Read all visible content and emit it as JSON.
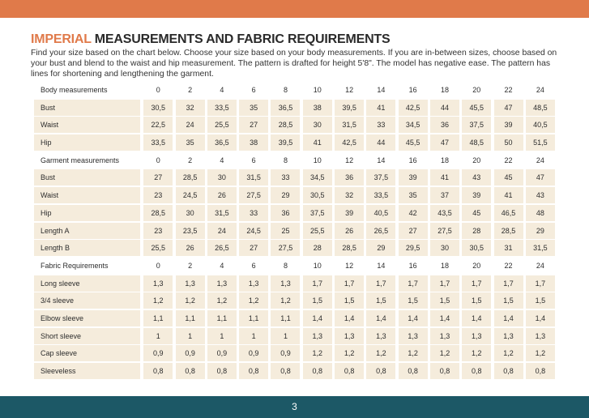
{
  "title": {
    "accent": "IMPERIAL",
    "rest": " MEASUREMENTS AND FABRIC REQUIREMENTS"
  },
  "description": "Find your size based on the chart below. Choose your size based on your body measurements. If you are in-between sizes, choose based on your bust and blend to the waist and hip measurement. The pattern is drafted for height 5'8\". The model has negative ease. The pattern has lines for shortening and lengthening the garment.",
  "sizes": [
    "0",
    "2",
    "4",
    "6",
    "8",
    "10",
    "12",
    "14",
    "16",
    "18",
    "20",
    "22",
    "24"
  ],
  "sections": [
    {
      "header": "Body measurements",
      "rows": [
        {
          "label": "Bust",
          "values": [
            "30,5",
            "32",
            "33,5",
            "35",
            "36,5",
            "38",
            "39,5",
            "41",
            "42,5",
            "44",
            "45,5",
            "47",
            "48,5"
          ]
        },
        {
          "label": "Waist",
          "values": [
            "22,5",
            "24",
            "25,5",
            "27",
            "28,5",
            "30",
            "31,5",
            "33",
            "34,5",
            "36",
            "37,5",
            "39",
            "40,5"
          ]
        },
        {
          "label": "Hip",
          "values": [
            "33,5",
            "35",
            "36,5",
            "38",
            "39,5",
            "41",
            "42,5",
            "44",
            "45,5",
            "47",
            "48,5",
            "50",
            "51,5"
          ]
        }
      ]
    },
    {
      "header": "Garment measurements",
      "rows": [
        {
          "label": "Bust",
          "values": [
            "27",
            "28,5",
            "30",
            "31,5",
            "33",
            "34,5",
            "36",
            "37,5",
            "39",
            "41",
            "43",
            "45",
            "47"
          ]
        },
        {
          "label": "Waist",
          "values": [
            "23",
            "24,5",
            "26",
            "27,5",
            "29",
            "30,5",
            "32",
            "33,5",
            "35",
            "37",
            "39",
            "41",
            "43"
          ]
        },
        {
          "label": "Hip",
          "values": [
            "28,5",
            "30",
            "31,5",
            "33",
            "36",
            "37,5",
            "39",
            "40,5",
            "42",
            "43,5",
            "45",
            "46,5",
            "48"
          ]
        },
        {
          "label": "Length A",
          "values": [
            "23",
            "23,5",
            "24",
            "24,5",
            "25",
            "25,5",
            "26",
            "26,5",
            "27",
            "27,5",
            "28",
            "28,5",
            "29"
          ]
        },
        {
          "label": "Length B",
          "values": [
            "25,5",
            "26",
            "26,5",
            "27",
            "27,5",
            "28",
            "28,5",
            "29",
            "29,5",
            "30",
            "30,5",
            "31",
            "31,5"
          ]
        }
      ]
    },
    {
      "header": "Fabric Requirements",
      "rows": [
        {
          "label": "Long sleeve",
          "values": [
            "1,3",
            "1,3",
            "1,3",
            "1,3",
            "1,3",
            "1,7",
            "1,7",
            "1,7",
            "1,7",
            "1,7",
            "1,7",
            "1,7",
            "1,7"
          ]
        },
        {
          "label": "3/4 sleeve",
          "values": [
            "1,2",
            "1,2",
            "1,2",
            "1,2",
            "1,2",
            "1,5",
            "1,5",
            "1,5",
            "1,5",
            "1,5",
            "1,5",
            "1,5",
            "1,5"
          ]
        },
        {
          "label": "Elbow sleeve",
          "values": [
            "1,1",
            "1,1",
            "1,1",
            "1,1",
            "1,1",
            "1,4",
            "1,4",
            "1,4",
            "1,4",
            "1,4",
            "1,4",
            "1,4",
            "1,4"
          ]
        },
        {
          "label": "Short sleeve",
          "values": [
            "1",
            "1",
            "1",
            "1",
            "1",
            "1,3",
            "1,3",
            "1,3",
            "1,3",
            "1,3",
            "1,3",
            "1,3",
            "1,3"
          ]
        },
        {
          "label": "Cap sleeve",
          "values": [
            "0,9",
            "0,9",
            "0,9",
            "0,9",
            "0,9",
            "1,2",
            "1,2",
            "1,2",
            "1,2",
            "1,2",
            "1,2",
            "1,2",
            "1,2"
          ]
        },
        {
          "label": "Sleeveless",
          "values": [
            "0,8",
            "0,8",
            "0,8",
            "0,8",
            "0,8",
            "0,8",
            "0,8",
            "0,8",
            "0,8",
            "0,8",
            "0,8",
            "0,8",
            "0,8"
          ]
        }
      ]
    }
  ],
  "page_number": "3",
  "colors": {
    "accent": "#e07a4a",
    "footer": "#1c5866",
    "cell": "#f5ecdc"
  }
}
